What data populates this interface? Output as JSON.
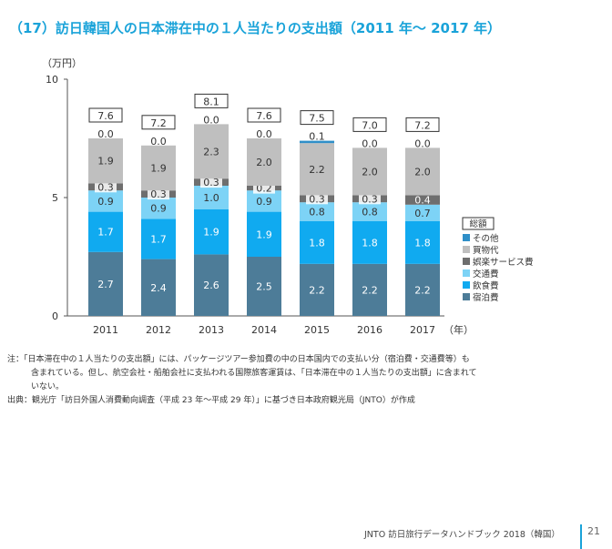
{
  "header": {
    "title": "（17）訪日韓国人の日本滞在中の１人当たりの支出額（2011 年〜 2017 年）"
  },
  "chart_data": {
    "type": "stacked-bar",
    "title": "（17）訪日韓国人の日本滞在中の１人当たりの支出額（2011 年〜 2017 年）",
    "ylabel": "（万円）",
    "xlabel": "（年）",
    "ylim": [
      0,
      10
    ],
    "yticks": [
      "0",
      "5",
      "10"
    ],
    "categories": [
      "2011",
      "2012",
      "2013",
      "2014",
      "2015",
      "2016",
      "2017"
    ],
    "series": [
      {
        "name": "宿泊費",
        "color": "#4d7c98",
        "values": [
          2.7,
          2.4,
          2.6,
          2.5,
          2.2,
          2.2,
          2.2
        ],
        "labels": [
          "2.7",
          "2.4",
          "2.6",
          "2.5",
          "2.2",
          "2.2",
          "2.2"
        ]
      },
      {
        "name": "飲食費",
        "color": "#10aaf0",
        "values": [
          1.7,
          1.7,
          1.9,
          1.9,
          1.8,
          1.8,
          1.8
        ],
        "labels": [
          "1.7",
          "1.7",
          "1.9",
          "1.9",
          "1.8",
          "1.8",
          "1.8"
        ]
      },
      {
        "name": "交通費",
        "color": "#7dd3f6",
        "values": [
          0.9,
          0.9,
          1.0,
          0.9,
          0.8,
          0.8,
          0.7
        ],
        "labels": [
          "0.9",
          "0.9",
          "1.0",
          "0.9",
          "0.8",
          "0.8",
          "0.7"
        ]
      },
      {
        "name": "娯楽サービス費",
        "color": "#6e6e6e",
        "values": [
          0.3,
          0.3,
          0.3,
          0.2,
          0.3,
          0.3,
          0.4
        ],
        "labels": [
          "0.3",
          "0.3",
          "0.3",
          "0.2",
          "0.3",
          "0.3",
          "0.4"
        ]
      },
      {
        "name": "買物代",
        "color": "#bfbfbf",
        "values": [
          1.9,
          1.9,
          2.3,
          2.0,
          2.2,
          2.0,
          2.0
        ],
        "labels": [
          "1.9",
          "1.9",
          "2.3",
          "2.0",
          "2.2",
          "2.0",
          "2.0"
        ]
      },
      {
        "name": "その他",
        "color": "#2f8fc8",
        "values": [
          0.0,
          0.0,
          0.0,
          0.0,
          0.1,
          0.0,
          0.0
        ],
        "labels": [
          "0.0",
          "0.0",
          "0.0",
          "0.0",
          "0.1",
          "0.0",
          "0.0"
        ]
      }
    ],
    "totals": [
      "7.6",
      "7.2",
      "8.1",
      "7.6",
      "7.5",
      "7.0",
      "7.2"
    ],
    "legend": {
      "title": "総額",
      "items": [
        "その他",
        "買物代",
        "娯楽サービス費",
        "交通費",
        "飲食費",
        "宿泊費"
      ],
      "position": "right"
    }
  },
  "notes": {
    "line1": "注：「日本滞在中の１人当たりの支出額」には、パッケージツアー参加費の中の日本国内での支払い分（宿泊費・交通費等）も",
    "line2": "含まれている。但し、航空会社・船舶会社に支払われる国際旅客運賃は、「日本滞在中の１人当たりの支出額」に含まれて",
    "line3": "いない。",
    "source": "出典：観光庁「訪日外国人消費動向調査（平成 23 年〜平成 29 年）」に基づき日本政府観光局（JNTO）が作成"
  },
  "footer": {
    "text": "JNTO 訪日旅行データハンドブック 2018（韓国）",
    "page": "21",
    "accent": "#1aa3d9"
  }
}
